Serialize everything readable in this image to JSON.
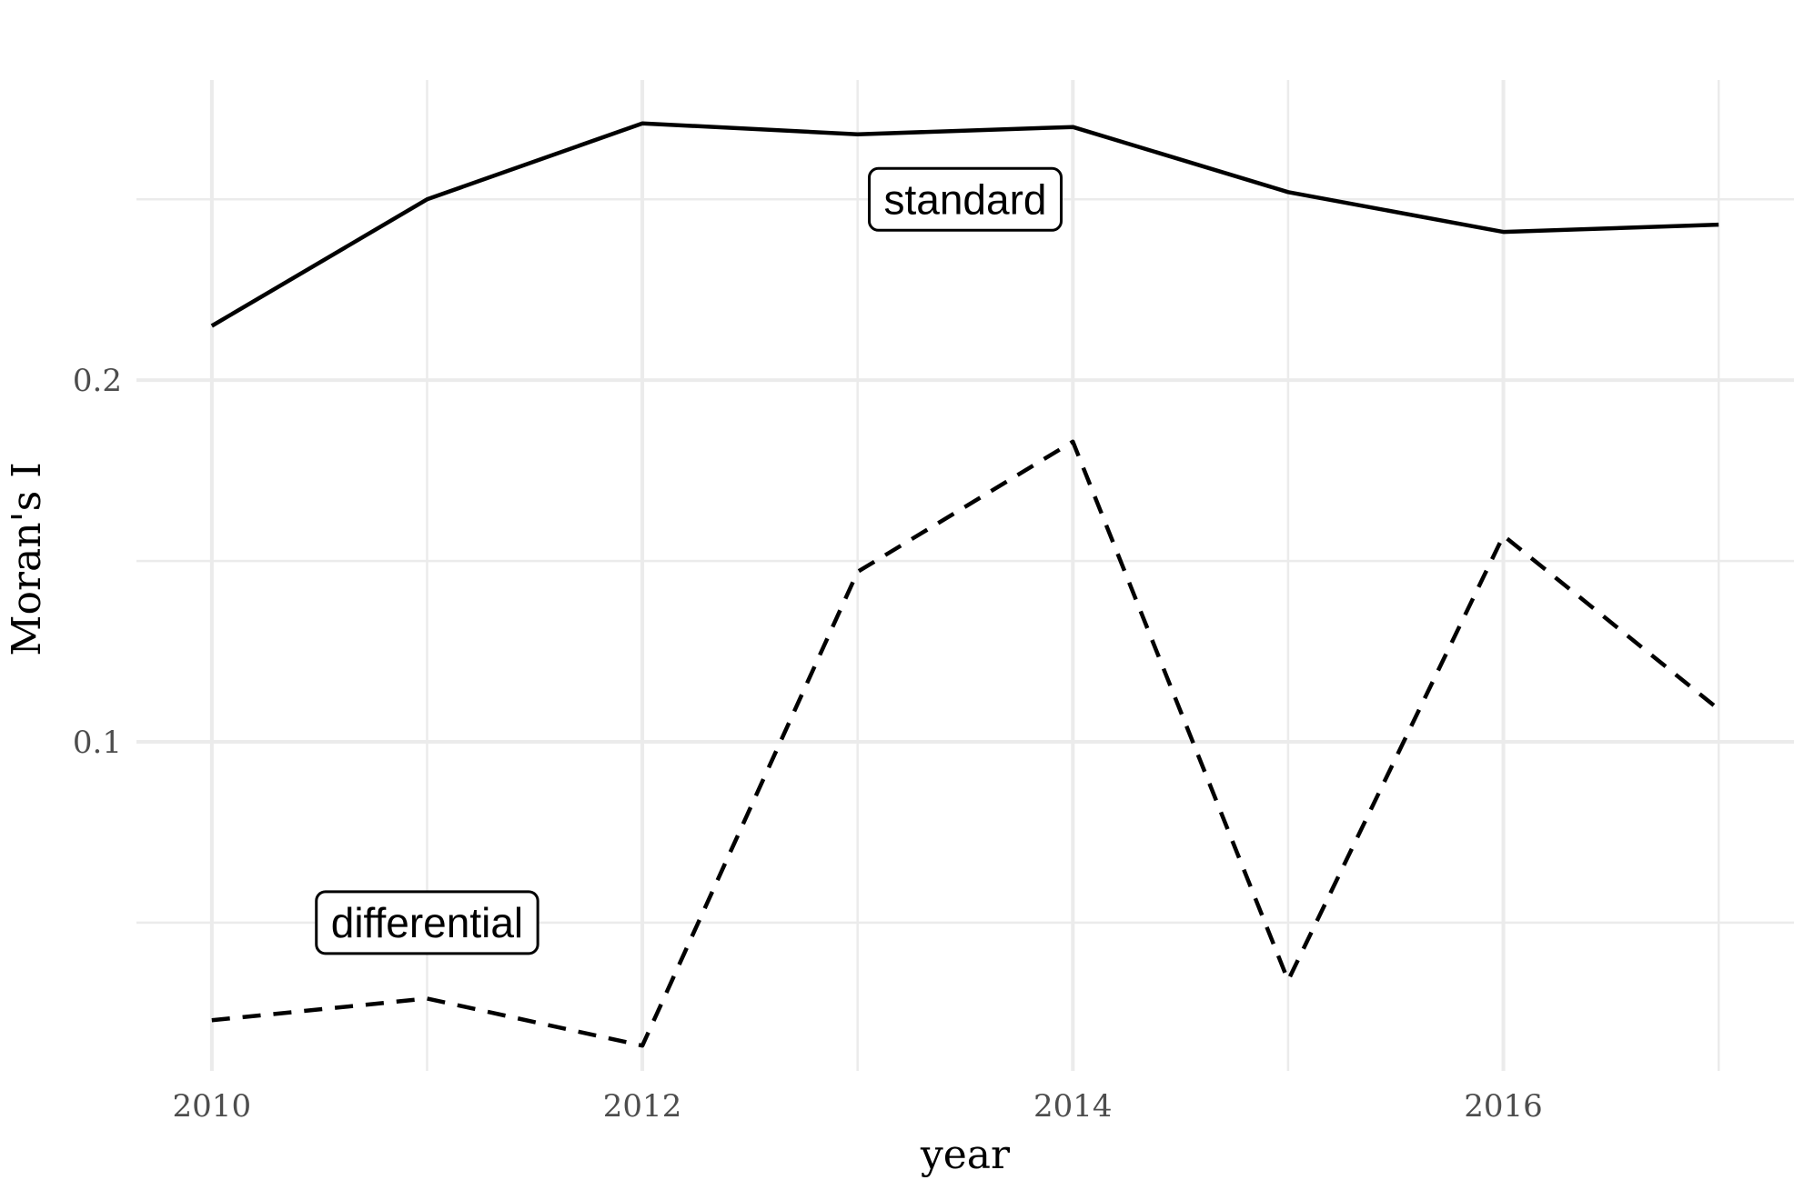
{
  "chart_data": {
    "type": "line",
    "title": "",
    "xlabel": "year",
    "ylabel": "Moran's I",
    "x": [
      2010,
      2011,
      2012,
      2013,
      2014,
      2015,
      2016,
      2017
    ],
    "x_ticks": [
      2010,
      2012,
      2014,
      2016
    ],
    "x_tick_labels": [
      "2010",
      "2012",
      "2014",
      "2016"
    ],
    "y_ticks": [
      0.1,
      0.2
    ],
    "y_tick_labels": [
      "0.1",
      "0.2"
    ],
    "xlim": [
      2009.65,
      2017.35
    ],
    "ylim": [
      0.009,
      0.283
    ],
    "grid": true,
    "legend": "none",
    "series": [
      {
        "name": "standard",
        "line_style": "solid",
        "values": [
          0.215,
          0.25,
          0.271,
          0.268,
          0.27,
          0.252,
          0.241,
          0.243
        ]
      },
      {
        "name": "differential",
        "line_style": "dashed",
        "values": [
          0.023,
          0.029,
          0.016,
          0.147,
          0.183,
          0.034,
          0.157,
          0.109
        ]
      }
    ],
    "annotations": [
      {
        "text": "standard",
        "x": 2013.5,
        "y": 0.25
      },
      {
        "text": "differential",
        "x": 2011.0,
        "y": 0.05
      }
    ],
    "colors": {
      "line": "#000000",
      "grid": "#ebebeb",
      "tick": "#4d4d4d",
      "background": "#ffffff"
    }
  }
}
